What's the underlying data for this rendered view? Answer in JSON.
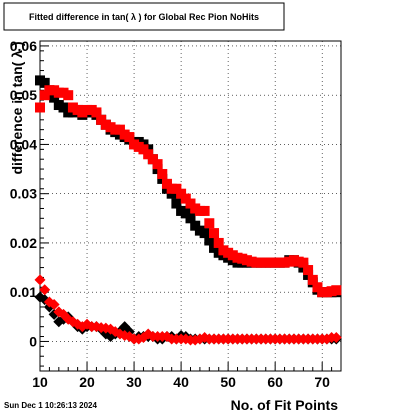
{
  "chart_data": {
    "type": "scatter",
    "title": "Fitted difference in tan( λ ) for Global Rec Pion NoHits",
    "xlabel": "No. of Fit Points",
    "ylabel": "difference in tan( λ )",
    "xlim": [
      10,
      74
    ],
    "ylim": [
      -0.006,
      0.061
    ],
    "x_ticks": [
      "10",
      "20",
      "30",
      "40",
      "50",
      "60",
      "70"
    ],
    "y_ticks": [
      "0",
      "0.01",
      "0.02",
      "0.03",
      "0.04",
      "0.05",
      "0.06"
    ],
    "grid": true,
    "footer": "Sun Dec  1 10:26:13 2024",
    "series": [
      {
        "marker": "square",
        "color": "#000000",
        "x": [
          10,
          11,
          12,
          13,
          14,
          15,
          16,
          17,
          18,
          19,
          20,
          21,
          22,
          23,
          24,
          25,
          26,
          27,
          28,
          29,
          30,
          31,
          32,
          33,
          34,
          35,
          36,
          37,
          38,
          39,
          40,
          41,
          42,
          43,
          44,
          45,
          46,
          47,
          48,
          49,
          50,
          51,
          52,
          53,
          54,
          55,
          56,
          57,
          58,
          59,
          60,
          61,
          62,
          63,
          64,
          65,
          66,
          67,
          68,
          69,
          70,
          71,
          72,
          73
        ],
        "y": [
          0.053,
          0.0525,
          0.051,
          0.0495,
          0.048,
          0.0475,
          0.0465,
          0.0465,
          0.047,
          0.046,
          0.0465,
          0.0465,
          0.046,
          0.045,
          0.044,
          0.043,
          0.0425,
          0.042,
          0.0415,
          0.041,
          0.0405,
          0.0405,
          0.04,
          0.039,
          0.037,
          0.035,
          0.033,
          0.031,
          0.03,
          0.028,
          0.0265,
          0.026,
          0.025,
          0.0235,
          0.0225,
          0.022,
          0.0205,
          0.019,
          0.018,
          0.0175,
          0.017,
          0.0165,
          0.016,
          0.016,
          0.016,
          0.016,
          0.016,
          0.016,
          0.016,
          0.016,
          0.016,
          0.016,
          0.016,
          0.0165,
          0.0165,
          0.016,
          0.015,
          0.0135,
          0.012,
          0.0105,
          0.01,
          0.01,
          0.01,
          0.01
        ]
      },
      {
        "marker": "square",
        "color": "#ff0000",
        "x": [
          10,
          11,
          12,
          13,
          14,
          15,
          16,
          17,
          18,
          19,
          20,
          21,
          22,
          23,
          24,
          25,
          26,
          27,
          28,
          29,
          30,
          31,
          32,
          33,
          34,
          35,
          36,
          37,
          38,
          39,
          40,
          41,
          42,
          43,
          44,
          45,
          46,
          47,
          48,
          49,
          50,
          51,
          52,
          53,
          54,
          55,
          56,
          57,
          58,
          59,
          60,
          61,
          62,
          63,
          64,
          65,
          66,
          67,
          68,
          69,
          70,
          71,
          72,
          73
        ],
        "y": [
          0.0475,
          0.05,
          0.051,
          0.051,
          0.0505,
          0.0505,
          0.05,
          0.0475,
          0.047,
          0.0465,
          0.047,
          0.047,
          0.0465,
          0.045,
          0.044,
          0.0435,
          0.043,
          0.043,
          0.042,
          0.0415,
          0.04,
          0.0395,
          0.039,
          0.038,
          0.037,
          0.036,
          0.034,
          0.032,
          0.031,
          0.031,
          0.03,
          0.029,
          0.028,
          0.027,
          0.0265,
          0.0265,
          0.024,
          0.022,
          0.02,
          0.0185,
          0.018,
          0.0175,
          0.017,
          0.0168,
          0.0165,
          0.0162,
          0.016,
          0.016,
          0.016,
          0.016,
          0.016,
          0.016,
          0.016,
          0.0162,
          0.0165,
          0.0162,
          0.016,
          0.0145,
          0.0125,
          0.011,
          0.01,
          0.01,
          0.0102,
          0.0104
        ]
      },
      {
        "marker": "diamond",
        "color": "#000000",
        "x": [
          10,
          11,
          12,
          13,
          14,
          15,
          16,
          17,
          18,
          19,
          20,
          21,
          22,
          23,
          24,
          25,
          26,
          27,
          28,
          29,
          30,
          31,
          32,
          33,
          34,
          35,
          36,
          37,
          38,
          39,
          40,
          41,
          42,
          43,
          44,
          45,
          46,
          47,
          48,
          49,
          50,
          51,
          52,
          53,
          54,
          55,
          56,
          57,
          58,
          59,
          60,
          61,
          62,
          63,
          64,
          65,
          66,
          67,
          68,
          69,
          70,
          71,
          72,
          73
        ],
        "y": [
          0.009,
          0.0085,
          0.007,
          0.0055,
          0.004,
          0.0045,
          0.005,
          0.004,
          0.003,
          0.0025,
          0.003,
          0.003,
          0.003,
          0.0025,
          0.0015,
          0.001,
          0.0015,
          0.002,
          0.003,
          0.002,
          0.0005,
          0.001,
          0.001,
          0.001,
          0.001,
          0.0005,
          0.0005,
          0.001,
          0.001,
          0.0005,
          0.0012,
          0.001,
          0.0005,
          0.0005,
          0.0005,
          0.0005,
          0.0005,
          0.0005,
          0.0005,
          0.0005,
          0.0005,
          0.0005,
          0.0005,
          0.0005,
          0.0005,
          0.0005,
          0.0005,
          0.0005,
          0.0005,
          0.0005,
          0.0005,
          0.0005,
          0.0005,
          0.0005,
          0.0005,
          0.0005,
          0.0005,
          0.0005,
          0.0005,
          0.0005,
          0.0005,
          0.0005,
          0.0005,
          0.0005
        ]
      },
      {
        "marker": "diamond",
        "color": "#ff0000",
        "x": [
          10,
          11,
          12,
          13,
          14,
          15,
          16,
          17,
          18,
          19,
          20,
          21,
          22,
          23,
          24,
          25,
          26,
          27,
          28,
          29,
          30,
          31,
          32,
          33,
          34,
          35,
          36,
          37,
          38,
          39,
          40,
          41,
          42,
          43,
          44,
          45,
          46,
          47,
          48,
          49,
          50,
          51,
          52,
          53,
          54,
          55,
          56,
          57,
          58,
          59,
          60,
          61,
          62,
          63,
          64,
          65,
          66,
          67,
          68,
          69,
          70,
          71,
          72,
          73
        ],
        "y": [
          0.0125,
          0.0105,
          0.008,
          0.0075,
          0.006,
          0.0055,
          0.0045,
          0.004,
          0.0035,
          0.003,
          0.0035,
          0.003,
          0.003,
          0.0028,
          0.0027,
          0.0025,
          0.002,
          0.0015,
          0.0012,
          0.001,
          0.0005,
          0.0005,
          0.0008,
          0.0015,
          0.001,
          0.001,
          0.001,
          0.001,
          0.0005,
          0.0005,
          0.0005,
          0.0005,
          0.0003,
          0.0003,
          0.0005,
          0.0008,
          0.0005,
          0.0005,
          0.0005,
          0.0005,
          0.0005,
          0.0005,
          0.0005,
          0.0005,
          0.0005,
          0.0005,
          0.0005,
          0.0005,
          0.0005,
          0.0005,
          0.0005,
          0.0005,
          0.0005,
          0.0005,
          0.0005,
          0.0005,
          0.0005,
          0.0005,
          0.0005,
          0.0005,
          0.0005,
          0.0005,
          0.0008,
          0.0008
        ]
      }
    ]
  }
}
